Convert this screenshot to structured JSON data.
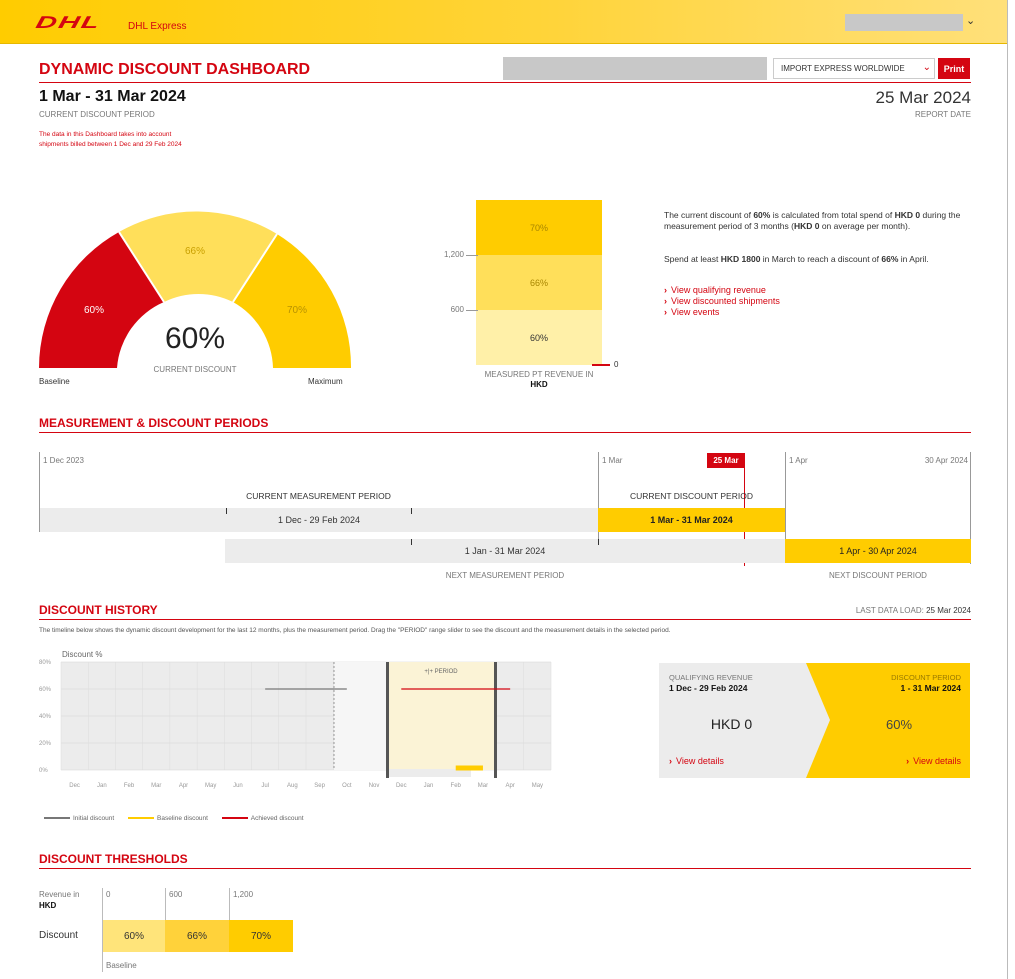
{
  "header": {
    "logo_text": "DHL",
    "brand": "DHL Express",
    "colors": {
      "yellow": "#ffcc00",
      "red": "#d40511"
    }
  },
  "dashboard": {
    "title": "DYNAMIC DISCOUNT DASHBOARD",
    "product_select": "IMPORT EXPRESS WORLDWIDE",
    "print_label": "Print",
    "period": "1 Mar - 31 Mar 2024",
    "period_caption": "CURRENT DISCOUNT PERIOD",
    "period_note": "The data in this Dashboard takes into account shipments billed between 1 Dec and 29 Feb 2024",
    "report_date": "25 Mar 2024",
    "report_caption": "REPORT DATE"
  },
  "gauge": {
    "segments": [
      "60%",
      "66%",
      "70%"
    ],
    "value": "60%",
    "caption": "CURRENT DISCOUNT",
    "left_label": "Baseline",
    "right_label": "Maximum"
  },
  "revenue_bar": {
    "ticks": [
      "1,200",
      "600",
      "0"
    ],
    "levels": [
      "70%",
      "66%",
      "60%"
    ],
    "caption": "MEASURED PT REVENUE IN",
    "currency": "HKD"
  },
  "info": {
    "p1_a": "The current discount of",
    "p1_b": "60%",
    "p1_c": "is calculated from total spend of",
    "p1_d": "HKD 0",
    "p1_e": "during the measurement period of 3 months (",
    "p1_f": "HKD 0",
    "p1_g": "on average per month).",
    "p2_a": "Spend at least",
    "p2_b": "HKD 1800",
    "p2_c": "in March to reach a discount of",
    "p2_d": "66%",
    "p2_e": "in April.",
    "links": [
      "View qualifying revenue",
      "View discounted shipments",
      "View events"
    ]
  },
  "periods": {
    "title": "MEASUREMENT & DISCOUNT PERIODS",
    "start_label": "1 Dec 2023",
    "mar_label": "1 Mar",
    "today_label": "25 Mar",
    "apr_label": "1 Apr",
    "end_label": "30 Apr 2024",
    "current_measurement": "CURRENT MEASUREMENT PERIOD",
    "current_discount": "CURRENT DISCOUNT PERIOD",
    "cm_range": "1 Dec - 29 Feb 2024",
    "cd_range": "1 Mar - 31 Mar 2024",
    "nm_range": "1 Jan - 31 Mar 2024",
    "nd_range": "1 Apr - 30 Apr 2024",
    "next_measurement": "NEXT MEASUREMENT PERIOD",
    "next_discount": "NEXT DISCOUNT PERIOD"
  },
  "history": {
    "title": "DISCOUNT HISTORY",
    "last_load_label": "LAST DATA LOAD:",
    "last_load": "25 Mar 2024",
    "description": "The timeline below shows the dynamic discount development for the last 12 months, plus the measurement period. Drag the \"PERIOD\" range slider to see the discount and the measurement details in the selected period.",
    "period_handle": "+|+ PERIOD",
    "legend": [
      "Initial discount",
      "Baseline discount",
      "Achieved discount"
    ]
  },
  "chart_data": {
    "type": "line",
    "ylabel": "Discount %",
    "yticks": [
      "80%",
      "60%",
      "40%",
      "20%",
      "0%"
    ],
    "ylim": [
      0,
      80
    ],
    "categories": [
      "Dec",
      "Jan",
      "Feb",
      "Mar",
      "Apr",
      "May",
      "Jun",
      "Jul",
      "Aug",
      "Sep",
      "Oct",
      "Nov",
      "Dec",
      "Jan",
      "Feb",
      "Mar",
      "Apr",
      "May"
    ],
    "series": [
      {
        "name": "Initial discount",
        "color": "#777777",
        "start_index": 7.5,
        "end_index": 10.5,
        "value": 60
      },
      {
        "name": "Achieved discount",
        "color": "#d40511",
        "start_index": 12.5,
        "end_index": 16.5,
        "value": 60
      },
      {
        "name": "Baseline discount",
        "color": "#ffcc00",
        "start_index": 14.5,
        "end_index": 15.5,
        "value": 0
      }
    ],
    "grid": true
  },
  "summary_card": {
    "qr_label": "QUALIFYING REVENUE",
    "qr_range": "1 Dec - 29 Feb 2024",
    "qr_value": "HKD 0",
    "dp_label": "DISCOUNT PERIOD",
    "dp_range": "1 - 31 Mar 2024",
    "dp_value": "60%",
    "view_details": "View details"
  },
  "thresholds": {
    "title": "DISCOUNT THRESHOLDS",
    "revenue_label": "Revenue in",
    "currency": "HKD",
    "discount_label": "Discount",
    "revenue_ticks": [
      "0",
      "600",
      "1,200"
    ],
    "discounts": [
      "60%",
      "66%",
      "70%"
    ],
    "baseline_label": "Baseline"
  }
}
